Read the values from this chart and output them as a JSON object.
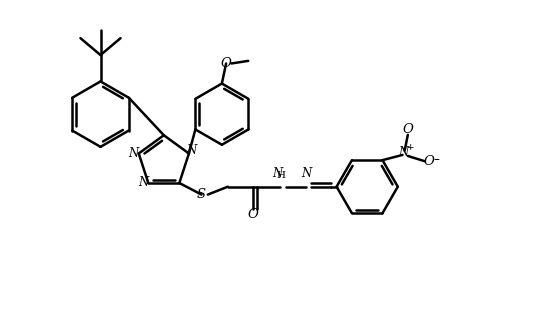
{
  "background_color": "#ffffff",
  "line_color": "#000000",
  "line_width": 1.8,
  "font_size": 8.5,
  "fig_width": 5.44,
  "fig_height": 3.18,
  "xlim": [
    0,
    10.2
  ],
  "ylim": [
    0,
    6.0
  ]
}
